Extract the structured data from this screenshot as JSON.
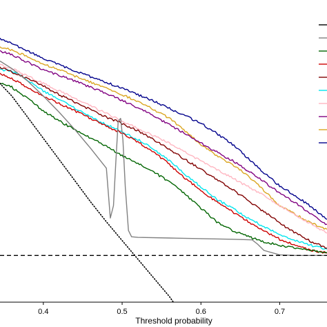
{
  "chart_data": {
    "type": "line",
    "xlabel": "Threshold probability",
    "ylabel": "",
    "xlim": [
      0.345,
      0.76
    ],
    "ylim": [
      -0.075,
      0.41
    ],
    "x_ticks": [
      "0.4",
      "0.5",
      "0.6",
      "0.7"
    ],
    "x_tick_values": [
      0.4,
      0.5,
      0.6,
      0.7
    ],
    "grid": false,
    "legend": "right, clipped at image edge",
    "series": [
      {
        "color": "#00008b",
        "style": "solid",
        "points": [
          [
            0.345,
            0.348
          ],
          [
            0.36,
            0.34
          ],
          [
            0.38,
            0.328
          ],
          [
            0.4,
            0.316
          ],
          [
            0.42,
            0.306
          ],
          [
            0.44,
            0.296
          ],
          [
            0.46,
            0.287
          ],
          [
            0.48,
            0.278
          ],
          [
            0.5,
            0.268
          ],
          [
            0.52,
            0.258
          ],
          [
            0.54,
            0.248
          ],
          [
            0.56,
            0.236
          ],
          [
            0.58,
            0.224
          ],
          [
            0.6,
            0.212
          ],
          [
            0.62,
            0.196
          ],
          [
            0.64,
            0.178
          ],
          [
            0.66,
            0.156
          ],
          [
            0.68,
            0.132
          ],
          [
            0.7,
            0.112
          ],
          [
            0.72,
            0.096
          ],
          [
            0.74,
            0.078
          ],
          [
            0.76,
            0.058
          ]
        ]
      },
      {
        "color": "#daa520",
        "style": "solid",
        "points": [
          [
            0.345,
            0.334
          ],
          [
            0.36,
            0.33
          ],
          [
            0.38,
            0.319
          ],
          [
            0.4,
            0.307
          ],
          [
            0.42,
            0.298
          ],
          [
            0.44,
            0.288
          ],
          [
            0.46,
            0.278
          ],
          [
            0.48,
            0.268
          ],
          [
            0.5,
            0.258
          ],
          [
            0.52,
            0.247
          ],
          [
            0.54,
            0.234
          ],
          [
            0.56,
            0.22
          ],
          [
            0.58,
            0.2
          ],
          [
            0.6,
            0.178
          ],
          [
            0.62,
            0.16
          ],
          [
            0.64,
            0.146
          ],
          [
            0.66,
            0.128
          ],
          [
            0.68,
            0.104
          ],
          [
            0.7,
            0.08
          ],
          [
            0.72,
            0.066
          ],
          [
            0.74,
            0.052
          ],
          [
            0.76,
            0.042
          ]
        ]
      },
      {
        "color": "#800080",
        "style": "solid",
        "points": [
          [
            0.345,
            0.328
          ],
          [
            0.36,
            0.322
          ],
          [
            0.38,
            0.31
          ],
          [
            0.4,
            0.298
          ],
          [
            0.42,
            0.289
          ],
          [
            0.44,
            0.28
          ],
          [
            0.46,
            0.27
          ],
          [
            0.48,
            0.26
          ],
          [
            0.5,
            0.249
          ],
          [
            0.52,
            0.237
          ],
          [
            0.54,
            0.224
          ],
          [
            0.56,
            0.21
          ],
          [
            0.58,
            0.195
          ],
          [
            0.6,
            0.18
          ],
          [
            0.62,
            0.166
          ],
          [
            0.64,
            0.152
          ],
          [
            0.66,
            0.136
          ],
          [
            0.68,
            0.118
          ],
          [
            0.7,
            0.1
          ],
          [
            0.72,
            0.084
          ],
          [
            0.74,
            0.066
          ],
          [
            0.76,
            0.05
          ]
        ]
      },
      {
        "color": "#ffb6c1",
        "style": "solid",
        "points": [
          [
            0.345,
            0.306
          ],
          [
            0.36,
            0.3
          ],
          [
            0.38,
            0.288
          ],
          [
            0.4,
            0.276
          ],
          [
            0.42,
            0.264
          ],
          [
            0.44,
            0.252
          ],
          [
            0.46,
            0.24
          ],
          [
            0.48,
            0.228
          ],
          [
            0.5,
            0.216
          ],
          [
            0.52,
            0.204
          ],
          [
            0.54,
            0.192
          ],
          [
            0.56,
            0.18
          ],
          [
            0.58,
            0.166
          ],
          [
            0.6,
            0.152
          ],
          [
            0.62,
            0.138
          ],
          [
            0.64,
            0.124
          ],
          [
            0.66,
            0.11
          ],
          [
            0.68,
            0.096
          ],
          [
            0.7,
            0.08
          ],
          [
            0.72,
            0.064
          ],
          [
            0.74,
            0.05
          ],
          [
            0.76,
            0.036
          ]
        ]
      },
      {
        "color": "#00e5ee",
        "style": "solid",
        "points": [
          [
            0.345,
            0.298
          ],
          [
            0.36,
            0.296
          ],
          [
            0.38,
            0.282
          ],
          [
            0.4,
            0.264
          ],
          [
            0.42,
            0.25
          ],
          [
            0.44,
            0.236
          ],
          [
            0.46,
            0.222
          ],
          [
            0.48,
            0.21
          ],
          [
            0.5,
            0.198
          ],
          [
            0.52,
            0.186
          ],
          [
            0.54,
            0.17
          ],
          [
            0.56,
            0.152
          ],
          [
            0.58,
            0.13
          ],
          [
            0.6,
            0.11
          ],
          [
            0.62,
            0.09
          ],
          [
            0.64,
            0.076
          ],
          [
            0.66,
            0.06
          ],
          [
            0.68,
            0.046
          ],
          [
            0.7,
            0.034
          ],
          [
            0.72,
            0.024
          ],
          [
            0.74,
            0.016
          ],
          [
            0.76,
            0.01
          ]
        ]
      },
      {
        "color": "#800000",
        "style": "solid",
        "points": [
          [
            0.345,
            0.302
          ],
          [
            0.36,
            0.294
          ],
          [
            0.38,
            0.284
          ],
          [
            0.4,
            0.272
          ],
          [
            0.42,
            0.258
          ],
          [
            0.44,
            0.246
          ],
          [
            0.46,
            0.234
          ],
          [
            0.48,
            0.222
          ],
          [
            0.5,
            0.212
          ],
          [
            0.52,
            0.2
          ],
          [
            0.54,
            0.186
          ],
          [
            0.56,
            0.17
          ],
          [
            0.58,
            0.154
          ],
          [
            0.6,
            0.138
          ],
          [
            0.62,
            0.122
          ],
          [
            0.64,
            0.106
          ],
          [
            0.66,
            0.088
          ],
          [
            0.68,
            0.07
          ],
          [
            0.7,
            0.052
          ],
          [
            0.72,
            0.036
          ],
          [
            0.74,
            0.022
          ],
          [
            0.76,
            0.012
          ]
        ]
      },
      {
        "color": "#cc0000",
        "style": "solid",
        "points": [
          [
            0.345,
            0.292
          ],
          [
            0.36,
            0.284
          ],
          [
            0.38,
            0.27
          ],
          [
            0.4,
            0.256
          ],
          [
            0.42,
            0.244
          ],
          [
            0.44,
            0.232
          ],
          [
            0.46,
            0.22
          ],
          [
            0.48,
            0.208
          ],
          [
            0.5,
            0.196
          ],
          [
            0.52,
            0.182
          ],
          [
            0.54,
            0.166
          ],
          [
            0.56,
            0.146
          ],
          [
            0.58,
            0.124
          ],
          [
            0.6,
            0.104
          ],
          [
            0.62,
            0.086
          ],
          [
            0.64,
            0.07
          ],
          [
            0.66,
            0.054
          ],
          [
            0.68,
            0.04
          ],
          [
            0.7,
            0.026
          ],
          [
            0.72,
            0.016
          ],
          [
            0.74,
            0.008
          ],
          [
            0.76,
            0.004
          ]
        ]
      },
      {
        "color": "#006400",
        "style": "solid",
        "points": [
          [
            0.345,
            0.276
          ],
          [
            0.36,
            0.27
          ],
          [
            0.38,
            0.252
          ],
          [
            0.4,
            0.232
          ],
          [
            0.42,
            0.216
          ],
          [
            0.44,
            0.202
          ],
          [
            0.46,
            0.188
          ],
          [
            0.48,
            0.176
          ],
          [
            0.5,
            0.16
          ],
          [
            0.52,
            0.148
          ],
          [
            0.54,
            0.134
          ],
          [
            0.56,
            0.118
          ],
          [
            0.58,
            0.098
          ],
          [
            0.6,
            0.076
          ],
          [
            0.62,
            0.054
          ],
          [
            0.64,
            0.04
          ],
          [
            0.66,
            0.03
          ],
          [
            0.68,
            0.022
          ],
          [
            0.7,
            0.016
          ],
          [
            0.72,
            0.012
          ],
          [
            0.74,
            0.008
          ],
          [
            0.76,
            0.004
          ]
        ]
      },
      {
        "color": "#808080",
        "style": "solid",
        "points": [
          [
            0.345,
            0.312
          ],
          [
            0.36,
            0.3
          ],
          [
            0.38,
            0.28
          ],
          [
            0.4,
            0.256
          ],
          [
            0.42,
            0.23
          ],
          [
            0.44,
            0.202
          ],
          [
            0.46,
            0.172
          ],
          [
            0.48,
            0.14
          ],
          [
            0.485,
            0.06
          ],
          [
            0.489,
            0.08
          ],
          [
            0.492,
            0.15
          ],
          [
            0.495,
            0.215
          ],
          [
            0.498,
            0.22
          ],
          [
            0.501,
            0.185
          ],
          [
            0.504,
            0.11
          ],
          [
            0.508,
            0.04
          ],
          [
            0.512,
            0.03
          ],
          [
            0.52,
            0.029
          ],
          [
            0.56,
            0.028
          ],
          [
            0.6,
            0.027
          ],
          [
            0.64,
            0.026
          ],
          [
            0.665,
            0.025
          ],
          [
            0.672,
            0.018
          ],
          [
            0.68,
            0.008
          ],
          [
            0.7,
            0.001
          ],
          [
            0.72,
            0.0
          ],
          [
            0.76,
            0.0
          ]
        ]
      },
      {
        "color": "#000000",
        "style": "dotted",
        "points": [
          [
            0.345,
            0.276
          ],
          [
            0.36,
            0.256
          ],
          [
            0.38,
            0.222
          ],
          [
            0.4,
            0.188
          ],
          [
            0.42,
            0.154
          ],
          [
            0.44,
            0.12
          ],
          [
            0.46,
            0.086
          ],
          [
            0.48,
            0.054
          ],
          [
            0.5,
            0.024
          ],
          [
            0.52,
            -0.006
          ],
          [
            0.54,
            -0.036
          ],
          [
            0.56,
            -0.066
          ],
          [
            0.565,
            -0.075
          ]
        ]
      },
      {
        "color": "#000000",
        "style": "dashed",
        "points": [
          [
            0.345,
            0.0
          ],
          [
            0.76,
            0.0
          ]
        ]
      }
    ]
  }
}
